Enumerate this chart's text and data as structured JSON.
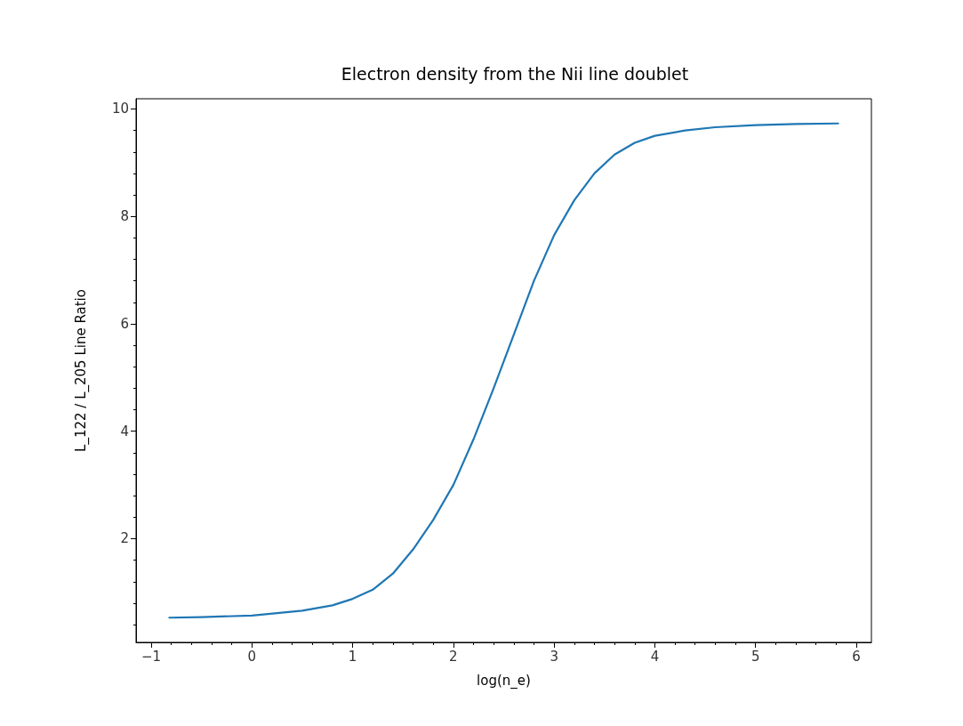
{
  "chart_data": {
    "type": "line",
    "title": "Electron density from the Nii line doublet",
    "xlabel": "log(n_e)",
    "ylabel": "L_122 / L_205 Line Ratio",
    "x": [
      -0.82,
      -0.5,
      0,
      0.5,
      0.8,
      1,
      1.2,
      1.4,
      1.6,
      1.8,
      2,
      2.2,
      2.4,
      2.6,
      2.8,
      3,
      3.2,
      3.4,
      3.6,
      3.8,
      4,
      4.3,
      4.6,
      5,
      5.4,
      5.82
    ],
    "series": [
      {
        "color": "#1f77b4",
        "values": [
          0.53,
          0.54,
          0.57,
          0.66,
          0.76,
          0.88,
          1.05,
          1.35,
          1.8,
          2.35,
          3.0,
          3.85,
          4.8,
          5.8,
          6.8,
          7.65,
          8.3,
          8.8,
          9.15,
          9.37,
          9.5,
          9.6,
          9.66,
          9.7,
          9.72,
          9.73
        ]
      }
    ],
    "xlim": [
      -1.15,
      6.15
    ],
    "ylim": [
      0.07,
      10.19
    ],
    "xticks": [
      {
        "value": -1,
        "label": "−1"
      },
      0,
      1,
      2,
      3,
      4,
      5,
      6
    ],
    "yticks": [
      2,
      4,
      6,
      8,
      10
    ],
    "grid": false,
    "marker": "none",
    "line_style": "solid"
  }
}
